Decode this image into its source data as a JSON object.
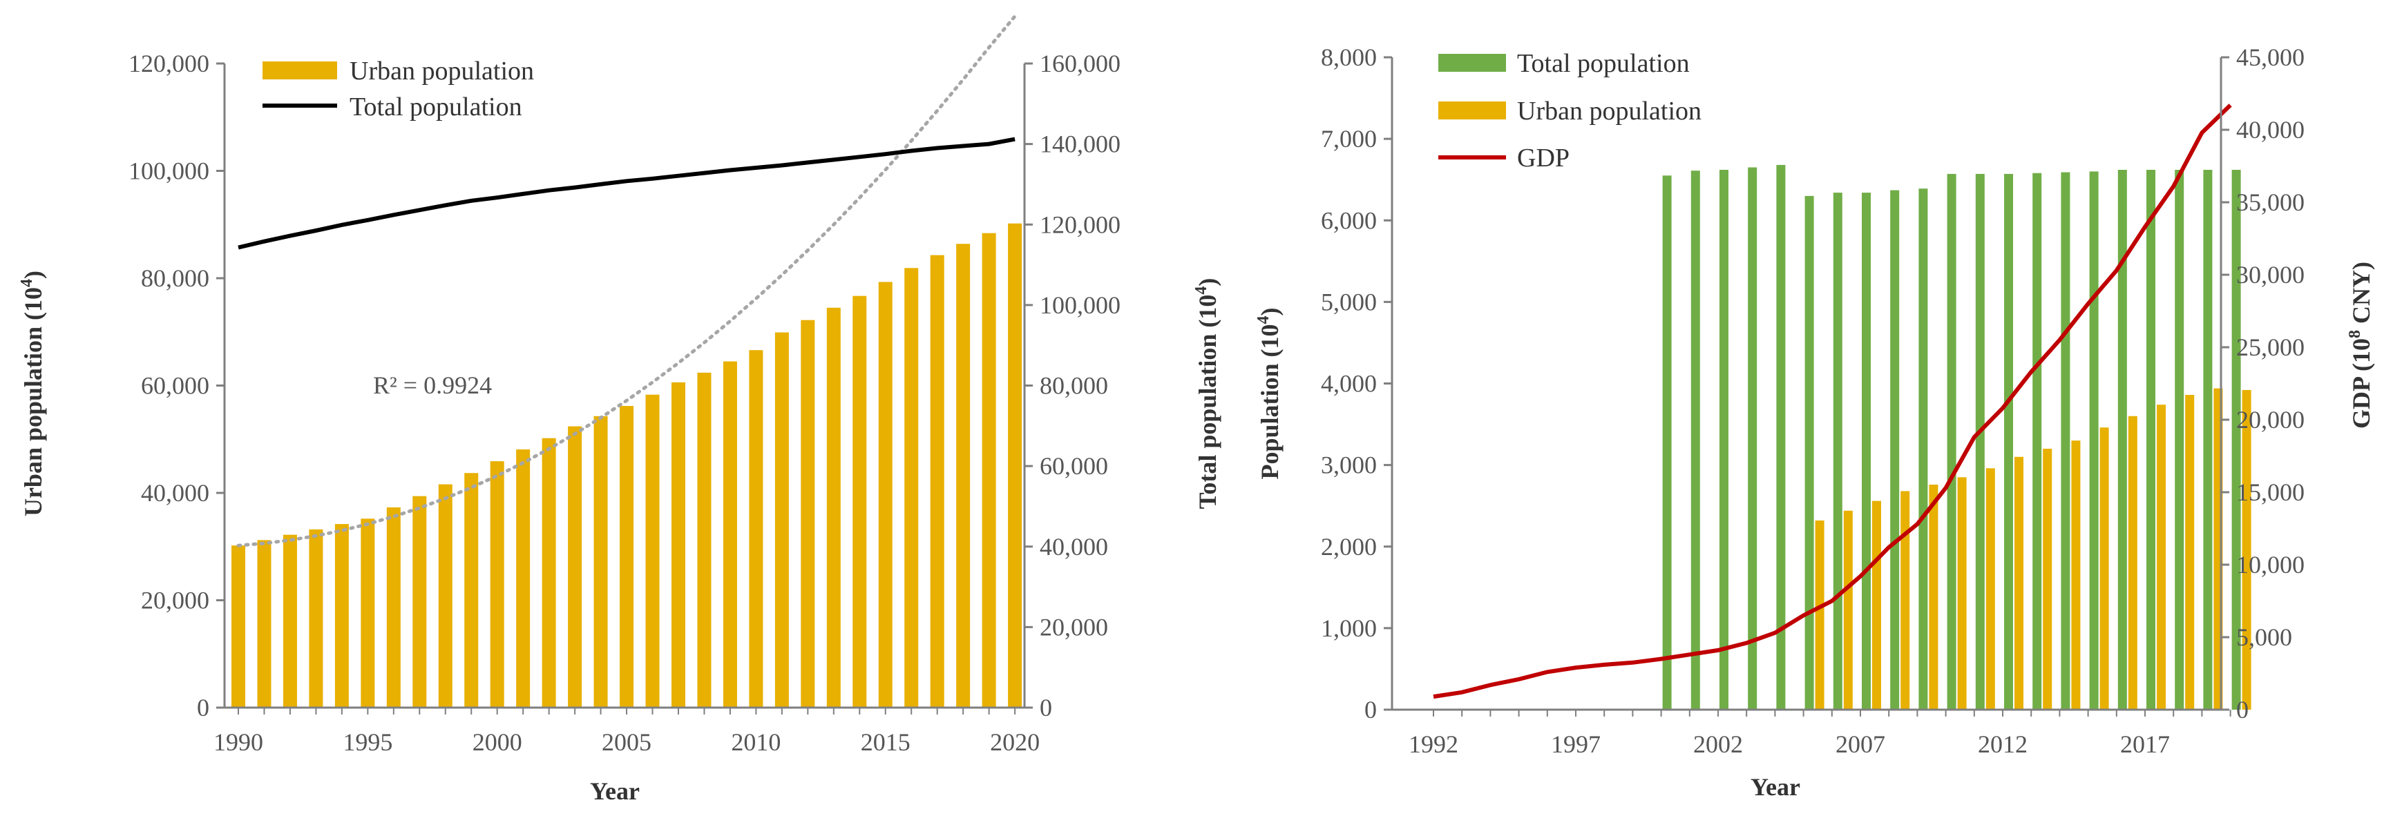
{
  "chart_data": [
    {
      "type": "bar",
      "title": "",
      "xlabel": "Year",
      "ylabel": "Urban  population  (10",
      "ylabel_sup": "4",
      "ylabel_end": ")",
      "y2label": "Total  population  (10",
      "y2label_sup": "4",
      "y2label_end": ")",
      "x_tick_labels": [
        "1990",
        "1995",
        "2000",
        "2005",
        "2010",
        "2015",
        "2020"
      ],
      "y_tick_labels": [
        "0",
        "20,000",
        "40,000",
        "60,000",
        "80,000",
        "100,000",
        "120,000"
      ],
      "y2_tick_labels": [
        "0",
        "20,000",
        "40,000",
        "60,000",
        "80,000",
        "100,000",
        "120,000",
        "140,000",
        "160,000"
      ],
      "ylim": [
        0,
        120000
      ],
      "y2lim": [
        0,
        160000
      ],
      "categories": [
        1990,
        1991,
        1992,
        1993,
        1994,
        1995,
        1996,
        1997,
        1998,
        1999,
        2000,
        2001,
        2002,
        2003,
        2004,
        2005,
        2006,
        2007,
        2008,
        2009,
        2010,
        2011,
        2012,
        2013,
        2014,
        2015,
        2016,
        2017,
        2018,
        2019,
        2020
      ],
      "series": [
        {
          "name": "Urban population",
          "type": "bar",
          "axis": "left",
          "color": "#E8B000",
          "values": [
            30200,
            31200,
            32200,
            33200,
            34200,
            35200,
            37300,
            39400,
            41600,
            43700,
            45900,
            48100,
            50200,
            52400,
            54300,
            56200,
            58300,
            60600,
            62400,
            64500,
            66600,
            69900,
            72200,
            74500,
            76700,
            79300,
            81900,
            84300,
            86400,
            88400,
            90200
          ]
        },
        {
          "name": "Total population",
          "type": "line",
          "axis": "right",
          "color": "#000000",
          "values": [
            114300,
            115800,
            117200,
            118500,
            119900,
            121100,
            122400,
            123600,
            124800,
            125900,
            126700,
            127600,
            128500,
            129200,
            130000,
            130800,
            131400,
            132100,
            132800,
            133500,
            134100,
            134700,
            135400,
            136100,
            136800,
            137500,
            138300,
            139000,
            139500,
            140000,
            141200
          ]
        }
      ],
      "trendline": {
        "type": "polynomial",
        "color": "#A6A6A6",
        "label": "R² = 0.9924",
        "values": [
          30200,
          30600,
          31200,
          32000,
          33000,
          34200,
          35600,
          37200,
          39000,
          41000,
          43200,
          45600,
          48200,
          51000,
          54000,
          57200,
          60600,
          64200,
          68000,
          72000,
          76200,
          80600,
          85200,
          90000,
          95000,
          100200,
          105600,
          111200,
          117000,
          123000,
          128800
        ]
      },
      "legend_position": "top-left"
    },
    {
      "type": "bar",
      "title": "",
      "xlabel": "Year",
      "ylabel": "Population   (10",
      "ylabel_sup": "4",
      "ylabel_end": ")",
      "y2label": "GDP  (10",
      "y2label_sup": "8",
      "y2label_end": " CNY)",
      "x_tick_labels": [
        "1992",
        "1997",
        "2002",
        "2007",
        "2012",
        "2017"
      ],
      "y_tick_labels": [
        "0",
        "1,000",
        "2,000",
        "3,000",
        "4,000",
        "5,000",
        "6,000",
        "7,000",
        "8,000"
      ],
      "y2_tick_labels": [
        "0",
        "5,000",
        "10,000",
        "15,000",
        "20,000",
        "25,000",
        "30,000",
        "35,000",
        "40,000",
        "45,000"
      ],
      "ylim": [
        0,
        8000
      ],
      "y2lim": [
        0,
        45000
      ],
      "categories": [
        1992,
        1993,
        1994,
        1995,
        1996,
        1997,
        1998,
        1999,
        2000,
        2001,
        2002,
        2003,
        2004,
        2005,
        2006,
        2007,
        2008,
        2009,
        2010,
        2011,
        2012,
        2013,
        2014,
        2015,
        2016,
        2017,
        2018,
        2019,
        2020
      ],
      "series": [
        {
          "name": "Total population",
          "type": "bar",
          "axis": "left",
          "color": "#70AD47",
          "values": [
            null,
            null,
            null,
            null,
            null,
            null,
            null,
            null,
            6550,
            6610,
            6620,
            6650,
            6680,
            6300,
            6340,
            6340,
            6370,
            6390,
            6570,
            6570,
            6570,
            6580,
            6590,
            6600,
            6620,
            6620,
            6620,
            6620,
            6620
          ]
        },
        {
          "name": "Urban population",
          "type": "bar",
          "axis": "left",
          "color": "#E8B000",
          "values": [
            null,
            null,
            null,
            null,
            null,
            null,
            null,
            null,
            null,
            null,
            null,
            null,
            null,
            2320,
            2440,
            2560,
            2680,
            2760,
            2850,
            2960,
            3100,
            3200,
            3300,
            3460,
            3600,
            3740,
            3860,
            3940,
            3920
          ]
        },
        {
          "name": "GDP",
          "type": "line",
          "axis": "right",
          "color": "#C00000",
          "values": [
            900,
            1200,
            1700,
            2100,
            2600,
            2900,
            3100,
            3250,
            3500,
            3800,
            4100,
            4600,
            5300,
            6500,
            7500,
            9200,
            11200,
            12800,
            15300,
            18800,
            20800,
            23300,
            25500,
            28000,
            30300,
            33300,
            36100,
            39800,
            41700
          ]
        }
      ],
      "legend_position": "top-left"
    }
  ]
}
